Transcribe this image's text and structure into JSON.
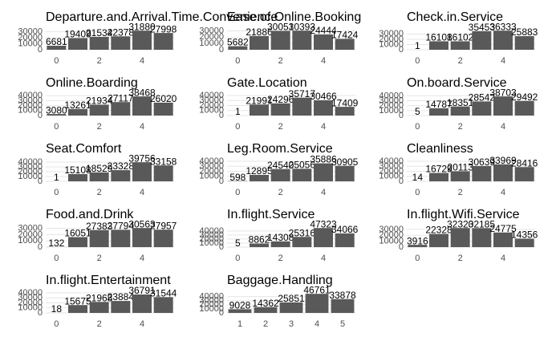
{
  "chart_data": [
    {
      "type": "bar",
      "title": "Departure.and.Arrival.Time.Convenience",
      "x": [
        0,
        1,
        2,
        3,
        4,
        5
      ],
      "values": [
        6681,
        19409,
        21534,
        22378,
        31880,
        27998
      ],
      "xlim": [
        -0.5,
        5.5
      ],
      "xticks": [
        0,
        2,
        4
      ],
      "ylim": [
        0,
        33474
      ],
      "yticks": [
        0,
        10000,
        20000,
        30000
      ],
      "color": "#595959",
      "grid": true
    },
    {
      "type": "bar",
      "title": "Ease.of.Online.Booking",
      "x": [
        0,
        1,
        2,
        3,
        4,
        5
      ],
      "values": [
        5682,
        21886,
        30051,
        30393,
        24444,
        17424
      ],
      "xlim": [
        -0.5,
        5.5
      ],
      "xticks": [
        0,
        2,
        4
      ],
      "ylim": [
        0,
        31913
      ],
      "yticks": [
        0,
        10000,
        20000,
        30000
      ],
      "color": "#595959",
      "grid": true
    },
    {
      "type": "bar",
      "title": "Check.in.Service",
      "x": [
        0,
        1,
        2,
        3,
        4,
        5
      ],
      "values": [
        1,
        16108,
        16102,
        35453,
        36333,
        25883
      ],
      "xlim": [
        -0.5,
        5.5
      ],
      "xticks": [
        0,
        2,
        4
      ],
      "ylim": [
        0,
        38150
      ],
      "yticks": [
        0,
        10000,
        20000,
        30000
      ],
      "color": "#595959",
      "grid": true
    },
    {
      "type": "bar",
      "title": "Online.Boarding",
      "x": [
        0,
        1,
        2,
        3,
        4,
        5
      ],
      "values": [
        3080,
        13261,
        21934,
        27117,
        38468,
        26020
      ],
      "xlim": [
        -0.5,
        5.5
      ],
      "xticks": [
        0,
        2,
        4
      ],
      "ylim": [
        0,
        40391
      ],
      "yticks": [
        0,
        10000,
        20000,
        30000,
        40000
      ],
      "color": "#595959",
      "grid": true
    },
    {
      "type": "bar",
      "title": "Gate.Location",
      "x": [
        0,
        1,
        2,
        3,
        4,
        5
      ],
      "values": [
        1,
        21991,
        24296,
        35717,
        30466,
        17409
      ],
      "xlim": [
        -0.5,
        5.5
      ],
      "xticks": [
        0,
        2,
        4
      ],
      "ylim": [
        0,
        40000
      ],
      "yticks": [
        0,
        10000,
        20000,
        30000,
        40000
      ],
      "color": "#595959",
      "grid": true
    },
    {
      "type": "bar",
      "title": "On.board.Service",
      "x": [
        0,
        1,
        2,
        3,
        4,
        5
      ],
      "values": [
        5,
        14787,
        18351,
        28542,
        38703,
        29492
      ],
      "xlim": [
        -0.5,
        5.5
      ],
      "xticks": [
        0,
        2,
        4
      ],
      "ylim": [
        0,
        40638
      ],
      "yticks": [
        0,
        10000,
        20000,
        30000,
        40000
      ],
      "color": "#595959",
      "grid": true
    },
    {
      "type": "bar",
      "title": "Seat.Comfort",
      "x": [
        0,
        1,
        2,
        3,
        4,
        5
      ],
      "values": [
        1,
        15108,
        18529,
        23328,
        39756,
        33158
      ],
      "xlim": [
        -0.5,
        5.5
      ],
      "xticks": [
        0,
        2,
        4
      ],
      "ylim": [
        0,
        41744
      ],
      "yticks": [
        0,
        10000,
        20000,
        30000,
        40000
      ],
      "color": "#595959",
      "grid": true
    },
    {
      "type": "bar",
      "title": "Leg.Room.Service",
      "x": [
        0,
        1,
        2,
        3,
        4,
        5
      ],
      "values": [
        598,
        12895,
        24540,
        25056,
        35886,
        30905
      ],
      "xlim": [
        -0.5,
        5.5
      ],
      "xticks": [
        0,
        2,
        4
      ],
      "ylim": [
        0,
        40000
      ],
      "yticks": [
        0,
        10000,
        20000,
        30000,
        40000
      ],
      "color": "#595959",
      "grid": true
    },
    {
      "type": "bar",
      "title": "Cleanliness",
      "x": [
        0,
        1,
        2,
        3,
        4,
        5
      ],
      "values": [
        14,
        16729,
        20113,
        30639,
        33969,
        28416
      ],
      "xlim": [
        -0.5,
        5.5
      ],
      "xticks": [
        0,
        2,
        4
      ],
      "ylim": [
        0,
        40000
      ],
      "yticks": [
        0,
        10000,
        20000,
        30000,
        40000
      ],
      "color": "#595959",
      "grid": true
    },
    {
      "type": "bar",
      "title": "Food.and.Drink",
      "x": [
        0,
        1,
        2,
        3,
        4,
        5
      ],
      "values": [
        132,
        16051,
        27383,
        27794,
        30563,
        27957
      ],
      "xlim": [
        -0.5,
        5.5
      ],
      "xticks": [
        0,
        2,
        4
      ],
      "ylim": [
        0,
        32091
      ],
      "yticks": [
        0,
        10000,
        20000,
        30000
      ],
      "color": "#595959",
      "grid": true
    },
    {
      "type": "bar",
      "title": "In.flight.Service",
      "x": [
        0,
        1,
        2,
        3,
        4,
        5
      ],
      "values": [
        5,
        8862,
        14308,
        25316,
        47323,
        34066
      ],
      "xlim": [
        -0.5,
        5.5
      ],
      "xticks": [
        0,
        2,
        4
      ],
      "ylim": [
        0,
        49689
      ],
      "yticks": [
        0,
        10000,
        20000,
        30000,
        40000
      ],
      "color": "#595959",
      "grid": true
    },
    {
      "type": "bar",
      "title": "In.flight.Wifi.Service",
      "x": [
        0,
        1,
        2,
        3,
        4,
        5
      ],
      "values": [
        3916,
        22328,
        32320,
        32185,
        24775,
        14356
      ],
      "xlim": [
        -0.5,
        5.5
      ],
      "xticks": [
        0,
        2,
        4
      ],
      "ylim": [
        0,
        33936
      ],
      "yticks": [
        0,
        10000,
        20000,
        30000
      ],
      "color": "#595959",
      "grid": true
    },
    {
      "type": "bar",
      "title": "In.flight.Entertainment",
      "x": [
        0,
        1,
        2,
        3,
        4,
        5
      ],
      "values": [
        18,
        15675,
        21968,
        23884,
        36791,
        31544
      ],
      "xlim": [
        -0.5,
        5.5
      ],
      "xticks": [
        0,
        2,
        4
      ],
      "ylim": [
        0,
        40000
      ],
      "yticks": [
        0,
        10000,
        20000,
        30000,
        40000
      ],
      "color": "#595959",
      "grid": true
    },
    {
      "type": "bar",
      "title": "Baggage.Handling",
      "x": [
        1,
        2,
        3,
        4,
        5
      ],
      "values": [
        9028,
        14362,
        25851,
        46761,
        33878
      ],
      "xlim": [
        0.5,
        5.5
      ],
      "xticks": [
        1,
        2,
        3,
        4,
        5
      ],
      "ylim": [
        0,
        49099
      ],
      "yticks": [
        0,
        10000,
        20000,
        30000,
        40000
      ],
      "color": "#595959",
      "grid": true
    }
  ]
}
